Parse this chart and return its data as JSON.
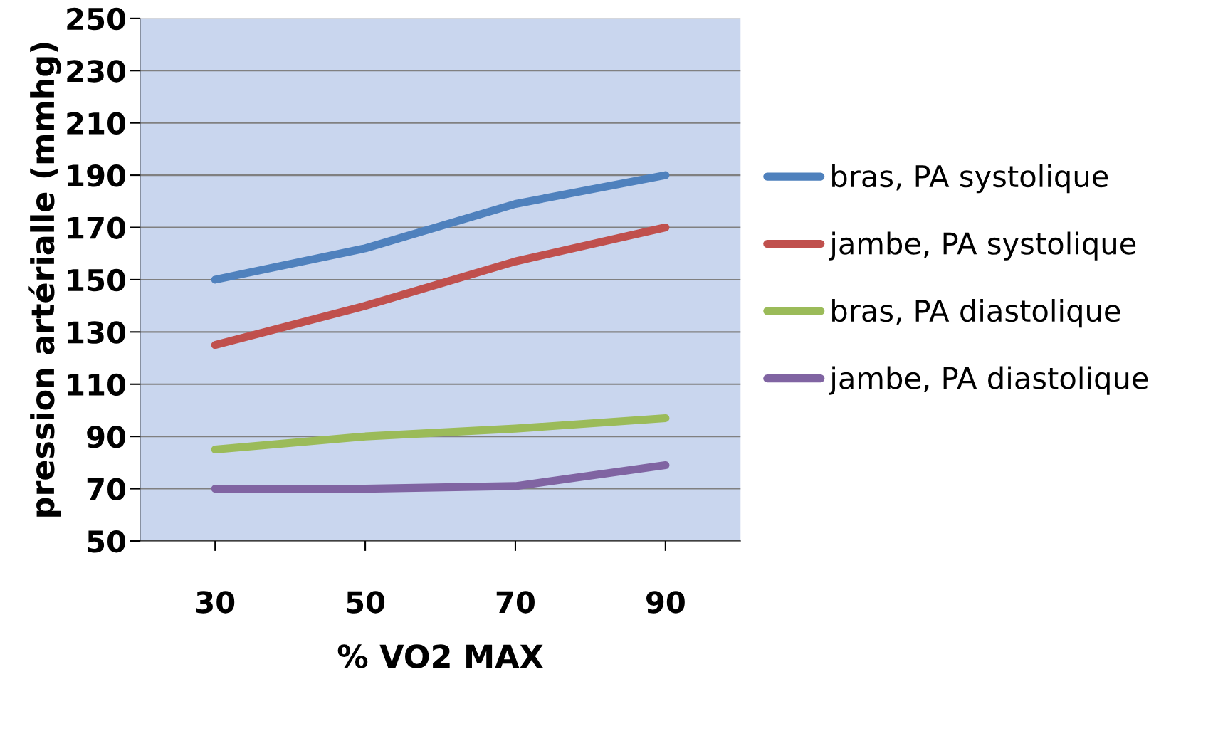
{
  "chart_data": {
    "type": "line",
    "xlabel": "% VO2 MAX",
    "ylabel": "pression artérialle (mmhg)",
    "categories": [
      "30",
      "50",
      "70",
      "90"
    ],
    "series": [
      {
        "name": "bras, PA systolique",
        "color": "#4f81bd",
        "values": [
          150,
          162,
          179,
          190
        ]
      },
      {
        "name": "jambe, PA systolique",
        "color": "#c0504d",
        "values": [
          125,
          140,
          157,
          170
        ]
      },
      {
        "name": "bras, PA diastolique",
        "color": "#9bbb59",
        "values": [
          85,
          90,
          93,
          97
        ]
      },
      {
        "name": "jambe, PA diastolique",
        "color": "#8064a2",
        "values": [
          70,
          70,
          71,
          79
        ]
      }
    ],
    "ylim": [
      50,
      250
    ],
    "yticks": [
      50,
      70,
      90,
      110,
      130,
      150,
      170,
      190,
      210,
      230,
      250
    ],
    "grid": "y",
    "legend": "right",
    "marker": "none"
  }
}
